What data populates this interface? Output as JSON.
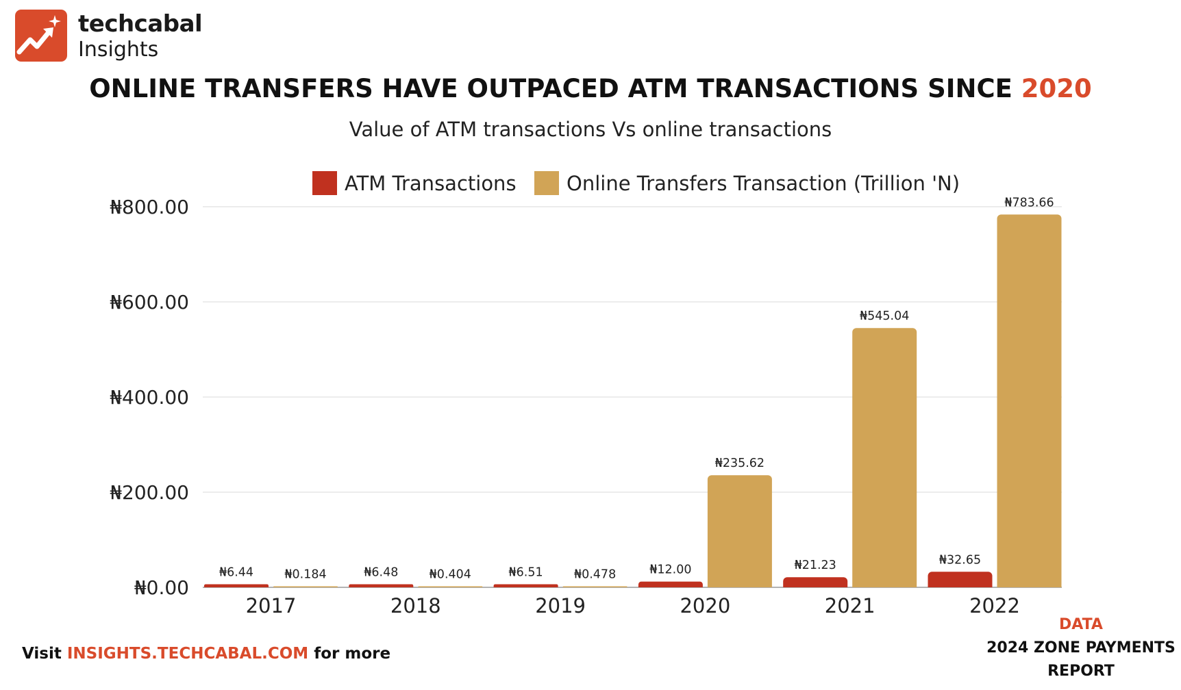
{
  "brand": {
    "name": "techcabal",
    "sub": "Insights",
    "logo_color": "#d94b2b"
  },
  "title": {
    "main": "ONLINE TRANSFERS HAVE OUTPACED ATM TRANSACTIONS SINCE",
    "highlight": "2020",
    "highlight_color": "#d94b2b"
  },
  "subtitle": "Value of ATM transactions Vs online transactions",
  "footer": {
    "visit": "Visit",
    "link": "INSIGHTS.TECHCABAL.COM",
    "more": "for more"
  },
  "source": {
    "label": "DATA",
    "line1": "2024 ZONE PAYMENTS",
    "line2": "REPORT"
  },
  "chart_data": {
    "type": "bar",
    "title": "ONLINE TRANSFERS HAVE OUTPACED ATM TRANSACTIONS SINCE 2020",
    "subtitle": "Value of ATM transactions Vs online transactions",
    "categories": [
      "2017",
      "2018",
      "2019",
      "2020",
      "2021",
      "2022"
    ],
    "series": [
      {
        "name": "ATM Transactions",
        "color": "#c0311f",
        "values": [
          6.44,
          6.48,
          6.51,
          12.0,
          21.23,
          32.65
        ],
        "labels": [
          "₦6.44",
          "₦6.48",
          "₦6.51",
          "₦12.00",
          "₦21.23",
          "₦32.65"
        ]
      },
      {
        "name": "Online Transfers Transaction (Trillion 'N)",
        "color": "#d1a456",
        "values": [
          0.184,
          0.404,
          0.478,
          235.62,
          545.04,
          783.66
        ],
        "labels": [
          "₦0.184",
          "₦0.404",
          "₦0.478",
          "₦235.62",
          "₦545.04",
          "₦783.66"
        ]
      }
    ],
    "ylim": [
      0,
      800
    ],
    "yticks": [
      0,
      200,
      400,
      600,
      800
    ],
    "ytick_labels": [
      "₦0.00",
      "₦200.00",
      "₦400.00",
      "₦600.00",
      "₦800.00"
    ],
    "xlabel": "",
    "ylabel": "",
    "grid": true,
    "legend_position": "top-center"
  }
}
